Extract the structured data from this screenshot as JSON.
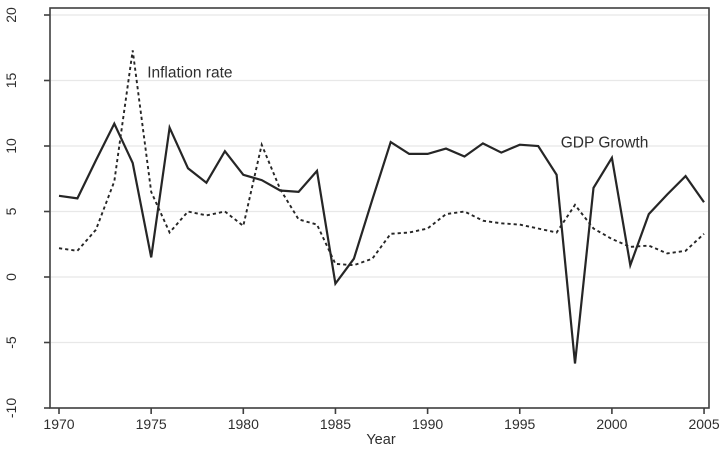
{
  "figure": {
    "background": "#ffffff",
    "line_color": "#262626",
    "grid_color": "#e8e8e8",
    "axis_color": "#3f3f3f",
    "text_color": "#2e2e2e"
  },
  "labels": {
    "x_axis_title": "Year",
    "inflation_label": "Inflation rate",
    "gdp_label": "GDP Growth"
  },
  "chart_data": {
    "type": "line",
    "title": "",
    "xlabel": "Year",
    "ylabel": "",
    "xlim": [
      1970,
      2005
    ],
    "ylim": [
      -10,
      20
    ],
    "xticks": [
      1970,
      1975,
      1980,
      1985,
      1990,
      1995,
      2000,
      2005
    ],
    "yticks": [
      -10,
      -5,
      0,
      5,
      10,
      15,
      20
    ],
    "grid": "horizontal",
    "legend": "inline-labels",
    "x": [
      1970,
      1971,
      1972,
      1973,
      1974,
      1975,
      1976,
      1977,
      1978,
      1979,
      1980,
      1981,
      1982,
      1983,
      1984,
      1985,
      1986,
      1987,
      1988,
      1989,
      1990,
      1991,
      1992,
      1993,
      1994,
      1995,
      1996,
      1997,
      1998,
      1999,
      2000,
      2001,
      2002,
      2003,
      2004,
      2005
    ],
    "series": [
      {
        "name": "GDP Growth",
        "style": "solid",
        "values": [
          6.2,
          6.0,
          8.9,
          11.7,
          8.7,
          1.5,
          11.4,
          8.3,
          7.2,
          9.6,
          7.8,
          7.4,
          6.6,
          6.5,
          8.1,
          -0.5,
          1.4,
          5.9,
          10.3,
          9.4,
          9.4,
          9.8,
          9.2,
          10.2,
          9.5,
          10.1,
          10.0,
          7.8,
          -6.6,
          6.8,
          9.1,
          0.9,
          4.8,
          6.3,
          7.7,
          5.7
        ]
      },
      {
        "name": "Inflation rate",
        "style": "dashed",
        "values": [
          2.2,
          2.0,
          3.6,
          7.3,
          17.3,
          6.5,
          3.4,
          5.0,
          4.7,
          5.0,
          3.9,
          10.1,
          6.7,
          4.4,
          4.0,
          1.0,
          0.9,
          1.4,
          3.3,
          3.4,
          3.7,
          4.8,
          5.0,
          4.3,
          4.1,
          4.0,
          3.7,
          3.4,
          5.5,
          3.7,
          2.9,
          2.3,
          2.4,
          1.8,
          2.0,
          3.3
        ]
      }
    ],
    "annotations": [
      {
        "text": "Inflation rate",
        "year": 1977.1,
        "value": 15.6
      },
      {
        "text": "GDP Growth",
        "year": 1999.6,
        "value": 10.25
      }
    ]
  }
}
